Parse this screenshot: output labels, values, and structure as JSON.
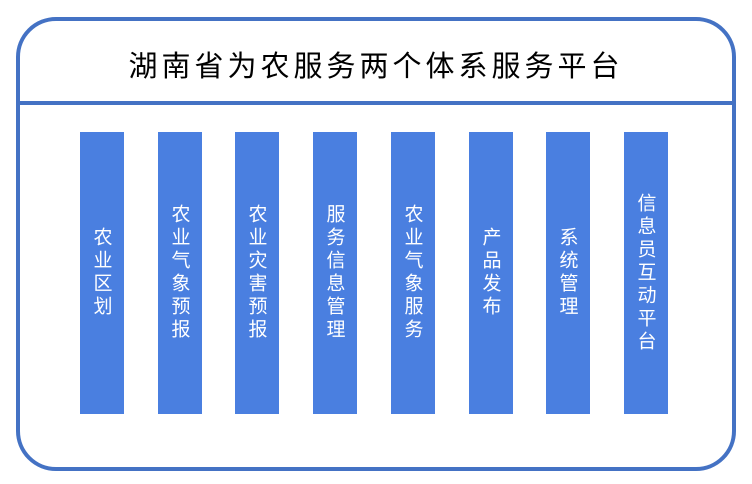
{
  "title": "湖南省为农服务两个体系服务平台",
  "colors": {
    "border": "#4472C4",
    "module": "#4A7FE0",
    "module_text": "#FFFFFF"
  },
  "modules": [
    {
      "label": "农业区划"
    },
    {
      "label": "农业气象预报"
    },
    {
      "label": "农业灾害预报"
    },
    {
      "label": "服务信息管理"
    },
    {
      "label": "农业气象服务"
    },
    {
      "label": "产品发布"
    },
    {
      "label": "系统管理"
    },
    {
      "label": "信息员互动平台"
    }
  ]
}
